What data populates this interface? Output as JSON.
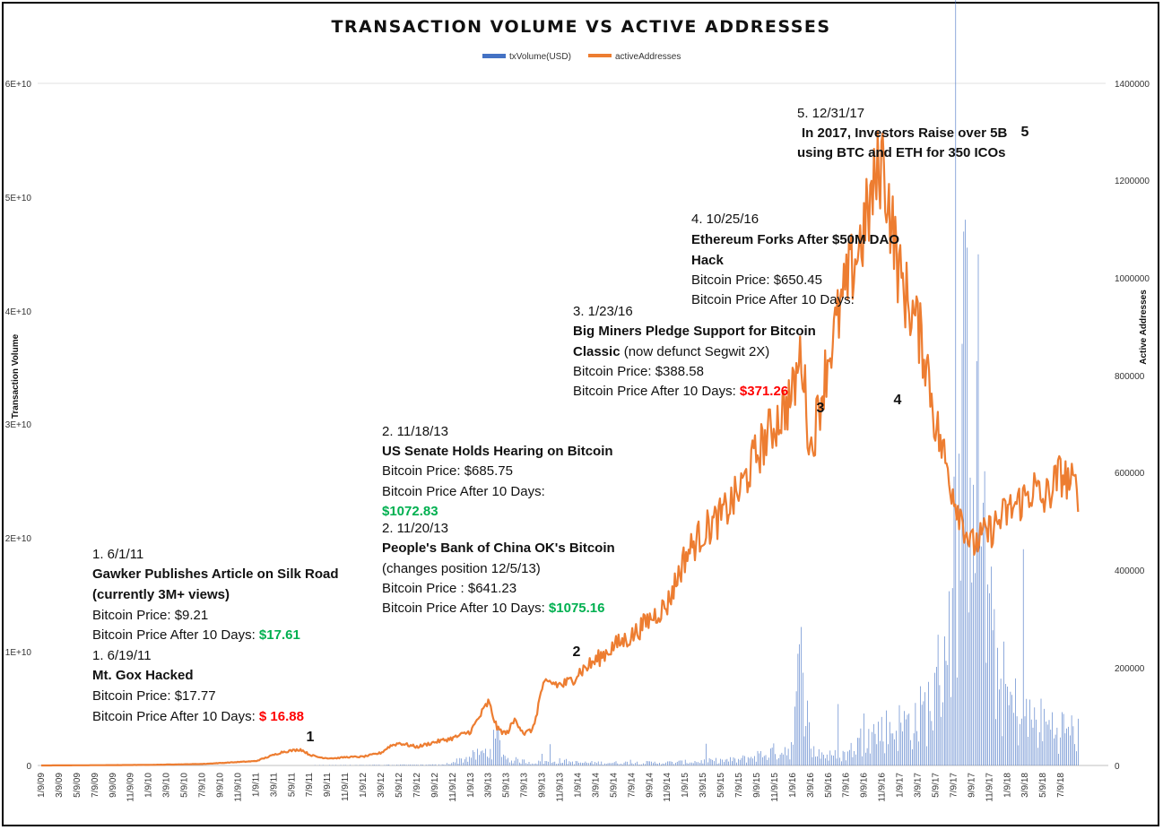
{
  "chart_data": {
    "type": "line",
    "title": "TRANSACTION VOLUME VS ACTIVE ADDRESSES",
    "legend": [
      "txVolume(USD)",
      "activeAddresses"
    ],
    "legend_position": "top-center",
    "ylabel_left": "Transaction Volume",
    "ylabel_right": "Active Addresses",
    "left_ticks": [
      "0",
      "1E+10",
      "2E+10",
      "3E+10",
      "4E+10",
      "5E+10",
      "6E+10"
    ],
    "right_ticks": [
      "0",
      "200000",
      "400000",
      "600000",
      "800000",
      "1000000",
      "1200000",
      "1400000"
    ],
    "ylim_left": [
      0,
      60000000000
    ],
    "ylim_right": [
      0,
      1400000
    ],
    "x_ticks": [
      "1/9/09",
      "3/9/09",
      "5/9/09",
      "7/9/09",
      "9/9/09",
      "11/9/09",
      "1/9/10",
      "3/9/10",
      "5/9/10",
      "7/9/10",
      "9/9/10",
      "11/9/10",
      "1/9/11",
      "3/9/11",
      "5/9/11",
      "7/9/11",
      "9/9/11",
      "11/9/11",
      "1/9/12",
      "3/9/12",
      "5/9/12",
      "7/9/12",
      "9/9/12",
      "11/9/12",
      "1/9/13",
      "3/9/13",
      "5/9/13",
      "7/9/13",
      "9/9/13",
      "11/9/13",
      "1/9/14",
      "3/9/14",
      "5/9/14",
      "7/9/14",
      "9/9/14",
      "11/9/14",
      "1/9/15",
      "3/9/15",
      "5/9/15",
      "7/9/15",
      "9/9/15",
      "11/9/15",
      "1/9/16",
      "3/9/16",
      "5/9/16",
      "7/9/16",
      "9/9/16",
      "11/9/16",
      "1/9/17",
      "3/9/17",
      "5/9/17",
      "7/9/17",
      "9/9/17",
      "11/9/17",
      "1/9/18",
      "3/9/18",
      "5/9/18",
      "7/9/18"
    ],
    "series": [
      {
        "name": "activeAddresses",
        "axis": "right",
        "color": "#ED7D31",
        "x_months": [
          0,
          6,
          12,
          18,
          20,
          24,
          27,
          29,
          30,
          31,
          32,
          33,
          34,
          36,
          38,
          39,
          40,
          42,
          44,
          46,
          48,
          50,
          51,
          52,
          53,
          54,
          55,
          56,
          57,
          58,
          59,
          60,
          62,
          64,
          66,
          68,
          70,
          72,
          74,
          76,
          78,
          80,
          82,
          84,
          85,
          86,
          88,
          90,
          92,
          94,
          96,
          98,
          99,
          100,
          102,
          104,
          106,
          108,
          110,
          111,
          112,
          114,
          116
        ],
        "values": [
          0,
          500,
          1200,
          3000,
          5000,
          9000,
          28000,
          33000,
          22000,
          17000,
          15000,
          15000,
          17000,
          18000,
          26000,
          40000,
          46000,
          38000,
          48000,
          56000,
          70000,
          130000,
          75000,
          65000,
          95000,
          65000,
          75000,
          160000,
          170000,
          165000,
          170000,
          190000,
          215000,
          245000,
          265000,
          300000,
          330000,
          430000,
          480000,
          510000,
          560000,
          640000,
          700000,
          760000,
          850000,
          640000,
          840000,
          980000,
          1100000,
          1250000,
          1000000,
          900000,
          830000,
          700000,
          560000,
          450000,
          480000,
          520000,
          550000,
          570000,
          540000,
          600000,
          560000
        ]
      },
      {
        "name": "txVolume(USD)",
        "axis": "left",
        "color": "#4472C4",
        "x_months": [
          0,
          24,
          45,
          50,
          51,
          52,
          55,
          58,
          60,
          64,
          70,
          78,
          82,
          84,
          85,
          86,
          88,
          90,
          92,
          94,
          96,
          98,
          100,
          102,
          104,
          106,
          108,
          110,
          112,
          114,
          116
        ],
        "values": [
          0,
          0,
          80000000,
          1500000000,
          3000000000,
          700000000,
          300000000,
          500000000,
          300000000,
          300000000,
          300000000,
          600000000,
          1500000000,
          2000000000,
          12000000000,
          1800000000,
          1000000000,
          1200000000,
          3000000000,
          3800000000,
          4300000000,
          5000000000,
          7500000000,
          20000000000,
          48000000000,
          14000000000,
          7000000000,
          5000000000,
          4500000000,
          4000000000,
          3500000000
        ]
      }
    ],
    "event_markers": [
      "1",
      "2",
      "3",
      "4",
      "5"
    ]
  },
  "annotations": {
    "a1": {
      "date1": "1. 6/1/11",
      "title1": "Gawker Publishes Article on Silk Road",
      "title1b": "(currently 3M+ views)",
      "price1": "Bitcoin Price: $9.21",
      "after1": "Bitcoin Price After 10 Days: ",
      "after1_val": "$17.61",
      "date2": "1. 6/19/11",
      "title2": "Mt. Gox Hacked",
      "price2": "Bitcoin Price: $17.77",
      "after2": "Bitcoin Price After 10 Days: ",
      "after2_val": "$ 16.88"
    },
    "a2": {
      "date1": "2. 11/18/13",
      "title1": "US Senate Holds Hearing on Bitcoin",
      "price1": "Bitcoin Price: $685.75",
      "after1": "Bitcoin Price After 10 Days:",
      "after1_val": "$1072.83",
      "date2": "2. 11/20/13",
      "title2": "People's Bank of China OK's Bitcoin",
      "note2": "(changes position 12/5/13)",
      "price2": "Bitcoin Price : $641.23",
      "after2": "Bitcoin Price After 10 Days: ",
      "after2_val": "$1075.16"
    },
    "a3": {
      "date": "3. 1/23/16",
      "title1": "Big Miners Pledge Support for Bitcoin",
      "title2": "Classic",
      "note": " (now defunct Segwit 2X)",
      "price": "Bitcoin Price: $388.58",
      "after": "Bitcoin Price After 10 Days: ",
      "after_val": "$371.26"
    },
    "a4": {
      "date": "4. 10/25/16",
      "title1": "Ethereum Forks After $50M DAO",
      "title2": "Hack",
      "price": "Bitcoin Price: $650.45",
      "after": "Bitcoin Price After 10 Days:"
    },
    "a5": {
      "date": "5. 12/31/17",
      "line1": "In 2017, Investors Raise over 5B",
      "line2": "using BTC and ETH  for 350 ICOs"
    }
  },
  "colors": {
    "green": "#00B050",
    "red": "#FF0000",
    "orange": "#ED7D31",
    "blue": "#4472C4"
  }
}
